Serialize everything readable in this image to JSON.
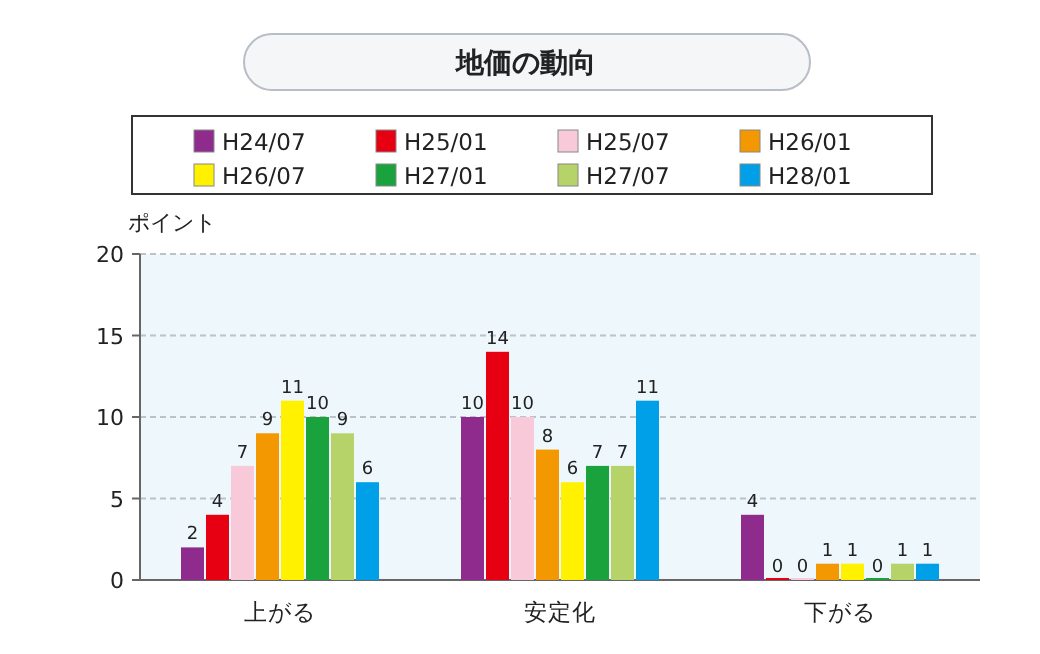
{
  "chart_data": {
    "type": "bar",
    "title": "地価の動向",
    "ylabel": "ポイント",
    "categories": [
      "上がる",
      "安定化",
      "下がる"
    ],
    "series": [
      {
        "name": "H24/07",
        "color": "#8e2b8c",
        "values": [
          2,
          10,
          4
        ]
      },
      {
        "name": "H25/01",
        "color": "#e60012",
        "values": [
          4,
          14,
          0
        ]
      },
      {
        "name": "H25/07",
        "color": "#f8c9d8",
        "values": [
          7,
          10,
          0
        ]
      },
      {
        "name": "H26/01",
        "color": "#f39800",
        "values": [
          9,
          8,
          1
        ]
      },
      {
        "name": "H26/07",
        "color": "#fff100",
        "values": [
          11,
          6,
          1
        ]
      },
      {
        "name": "H27/01",
        "color": "#1aa23c",
        "values": [
          10,
          7,
          0
        ]
      },
      {
        "name": "H27/07",
        "color": "#b6d36a",
        "values": [
          9,
          7,
          1
        ]
      },
      {
        "name": "H28/01",
        "color": "#00a0e9",
        "values": [
          6,
          11,
          1
        ]
      }
    ],
    "ylim": [
      0,
      20
    ],
    "yticks": [
      0,
      5,
      10,
      15,
      20
    ],
    "grid": "y",
    "legend": "top",
    "data_labels": true
  }
}
